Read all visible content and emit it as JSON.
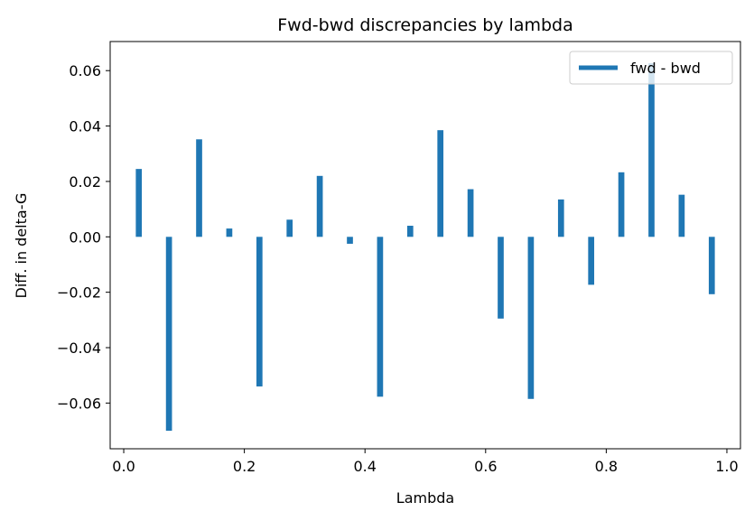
{
  "chart_data": {
    "type": "bar",
    "title": "Fwd-bwd discrepancies by lambda",
    "xlabel": "Lambda",
    "ylabel": "Diff. in delta-G",
    "xlim": [
      -0.0225,
      1.0225
    ],
    "ylim": [
      -0.0765,
      0.0705
    ],
    "xticks": [
      0.0,
      0.2,
      0.4,
      0.6,
      0.8,
      1.0
    ],
    "xtick_labels": [
      "0.0",
      "0.2",
      "0.4",
      "0.6",
      "0.8",
      "1.0"
    ],
    "yticks": [
      -0.06,
      -0.04,
      -0.02,
      0.0,
      0.02,
      0.04,
      0.06
    ],
    "ytick_labels": [
      "−0.06",
      "−0.04",
      "−0.02",
      "0.00",
      "0.02",
      "0.04",
      "0.06"
    ],
    "grid": false,
    "legend": {
      "placement": "top-right",
      "entries": [
        "fwd - bwd"
      ]
    },
    "bar_width": 0.01,
    "series": [
      {
        "name": "fwd - bwd",
        "color": "#1f77b4",
        "x": [
          0.025,
          0.075,
          0.125,
          0.175,
          0.225,
          0.275,
          0.325,
          0.375,
          0.425,
          0.475,
          0.525,
          0.575,
          0.625,
          0.675,
          0.725,
          0.775,
          0.825,
          0.875,
          0.925,
          0.975
        ],
        "values": [
          0.0245,
          -0.07,
          0.0352,
          0.003,
          -0.054,
          0.0062,
          0.022,
          -0.0025,
          -0.0577,
          0.004,
          0.0385,
          0.0172,
          -0.0295,
          -0.0585,
          0.0135,
          -0.0173,
          0.0233,
          0.0627,
          0.0152,
          -0.0207
        ]
      }
    ]
  }
}
